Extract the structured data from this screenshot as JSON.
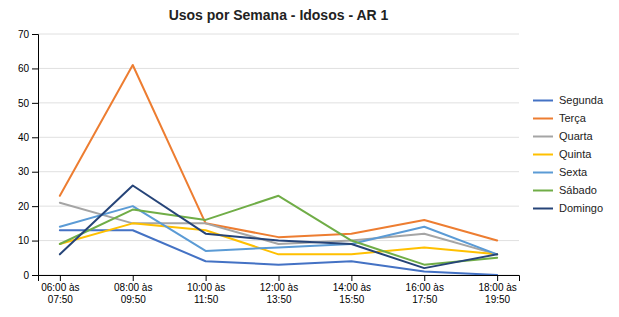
{
  "chart_data": {
    "type": "line",
    "title": "Usos por Semana - Idosos - AR 1",
    "categories": [
      "06:00 às\n07:50",
      "08:00 às\n09:50",
      "10:00 às\n11:50",
      "12:00 às\n13:50",
      "14:00 às\n15:50",
      "16:00 às\n17:50",
      "18:00 às\n19:50"
    ],
    "series": [
      {
        "name": "Segunda",
        "color": "#4472C4",
        "values": [
          13,
          13,
          4,
          3,
          4,
          1,
          0
        ]
      },
      {
        "name": "Terça",
        "color": "#ED7D31",
        "values": [
          23,
          61,
          15,
          11,
          12,
          16,
          10
        ]
      },
      {
        "name": "Quarta",
        "color": "#A5A5A5",
        "values": [
          21,
          15,
          15,
          9,
          10,
          12,
          6
        ]
      },
      {
        "name": "Quinta",
        "color": "#FFC000",
        "values": [
          9,
          15,
          13,
          6,
          6,
          8,
          6
        ]
      },
      {
        "name": "Sexta",
        "color": "#5B9BD5",
        "values": [
          14,
          20,
          7,
          8,
          9,
          14,
          6
        ]
      },
      {
        "name": "Sábado",
        "color": "#70AD47",
        "values": [
          9,
          19,
          16,
          23,
          10,
          3,
          5
        ]
      },
      {
        "name": "Domingo",
        "color": "#264478",
        "values": [
          6,
          26,
          12,
          10,
          9,
          2,
          6
        ]
      }
    ],
    "ylim": [
      0,
      70
    ],
    "yticks": [
      0,
      10,
      20,
      30,
      40,
      50,
      60,
      70
    ],
    "grid": true,
    "legend": "right"
  }
}
